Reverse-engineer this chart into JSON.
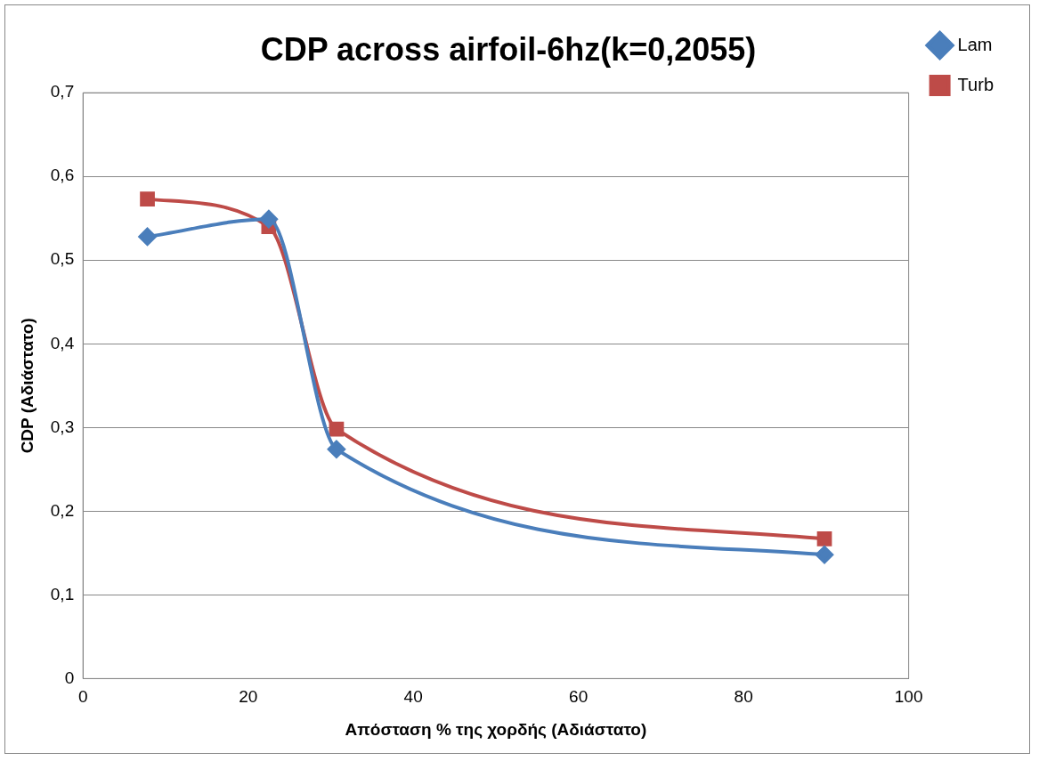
{
  "chart_data": {
    "type": "line",
    "title": "CDP across airfoil-6hz(k=0,2055)",
    "xlabel": "Απόσταση % της χορδής (Αδιάστατο)",
    "ylabel": "CDP (Αδιάστατο)",
    "xlim": [
      0,
      100
    ],
    "xticks": [
      0,
      20,
      40,
      60,
      80,
      100
    ],
    "ylim": [
      0,
      0.7
    ],
    "yticks": [
      {
        "value": 0,
        "label": "0"
      },
      {
        "value": 0.1,
        "label": "0,1"
      },
      {
        "value": 0.2,
        "label": "0,2"
      },
      {
        "value": 0.3,
        "label": "0,3"
      },
      {
        "value": 0.4,
        "label": "0,4"
      },
      {
        "value": 0.5,
        "label": "0,5"
      },
      {
        "value": 0.6,
        "label": "0,6"
      },
      {
        "value": 0.7,
        "label": "0,7"
      }
    ],
    "grid": "y",
    "legend": "top right",
    "series": [
      {
        "name": "Lam",
        "color": "#4a7ebb",
        "marker": "diamond",
        "x": [
          7.8,
          22.5,
          30.7,
          89.8
        ],
        "values": [
          0.528,
          0.549,
          0.274,
          0.148
        ]
      },
      {
        "name": "Turb",
        "color": "#be4b48",
        "marker": "square",
        "x": [
          7.8,
          22.5,
          30.7,
          89.8
        ],
        "values": [
          0.573,
          0.54,
          0.298,
          0.167
        ]
      }
    ]
  }
}
